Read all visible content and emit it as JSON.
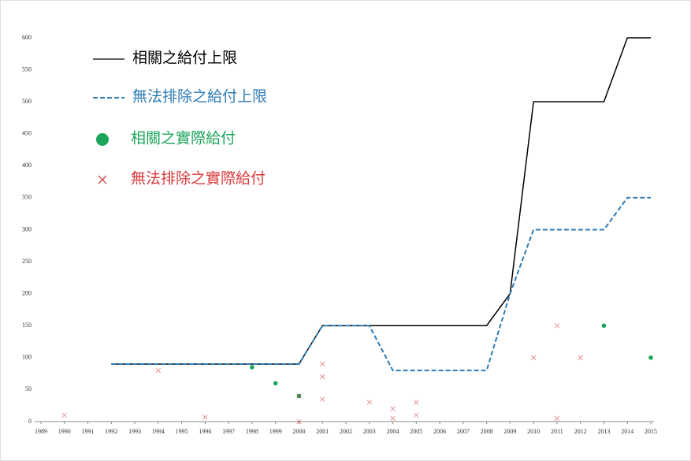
{
  "chart_data": {
    "type": "line",
    "x": [
      1989,
      1990,
      1991,
      1992,
      1993,
      1994,
      1995,
      1996,
      1997,
      1998,
      1999,
      2000,
      2001,
      2002,
      2003,
      2004,
      2005,
      2006,
      2007,
      2008,
      2009,
      2010,
      2011,
      2012,
      2013,
      2014,
      2015
    ],
    "xlim": [
      1989,
      2015
    ],
    "ylim": [
      0,
      600
    ],
    "yticks": [
      0,
      50,
      100,
      150,
      200,
      250,
      300,
      350,
      400,
      450,
      500,
      550,
      600
    ],
    "legend": "upper-left",
    "series": [
      {
        "name": "相關之給付上限",
        "type": "line",
        "color": "#000000",
        "dashed": false,
        "values": [
          null,
          null,
          null,
          90,
          90,
          90,
          90,
          90,
          90,
          90,
          90,
          90,
          150,
          150,
          150,
          150,
          150,
          150,
          150,
          150,
          200,
          500,
          500,
          500,
          500,
          600,
          600
        ]
      },
      {
        "name": "無法排除之給付上限",
        "type": "line",
        "color": "#2e7bb5",
        "dashed": true,
        "values": [
          null,
          null,
          null,
          90,
          90,
          90,
          90,
          90,
          90,
          90,
          90,
          90,
          150,
          150,
          150,
          80,
          80,
          80,
          80,
          80,
          200,
          300,
          300,
          300,
          300,
          350,
          350
        ]
      },
      {
        "name": "相關之實際給付",
        "type": "scatter",
        "marker": "circle",
        "color": "#1aa55a",
        "x": [
          1998,
          1999,
          2000,
          2013,
          2015
        ],
        "values": [
          85,
          60,
          40,
          150,
          100
        ]
      },
      {
        "name": "無法排除之實際給付",
        "type": "scatter",
        "marker": "x",
        "color": "#d9383a",
        "x": [
          1990,
          1994,
          1996,
          2000,
          2000,
          2001,
          2001,
          2001,
          2003,
          2004,
          2004,
          2005,
          2005,
          2010,
          2011,
          2011,
          2012
        ],
        "values": [
          10,
          80,
          7,
          0,
          40,
          90,
          70,
          35,
          30,
          20,
          5,
          30,
          10,
          100,
          150,
          5,
          100
        ]
      }
    ]
  }
}
